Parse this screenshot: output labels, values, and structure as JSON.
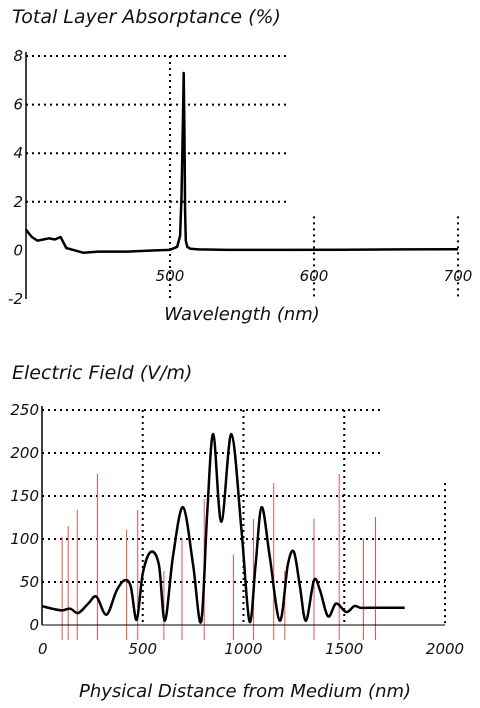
{
  "chart_data": [
    {
      "type": "line",
      "title": "Total Layer Absorptance (%)",
      "xlabel": "Wavelength (nm)",
      "ylabel": "",
      "xlim": [
        400,
        700
      ],
      "ylim": [
        -2,
        8
      ],
      "xticks": [
        "500",
        "600",
        "700"
      ],
      "yticks": [
        "-2",
        "0",
        "2",
        "4",
        "6",
        "8"
      ],
      "grid": "dotted",
      "series": [
        {
          "x": [
            400,
            404,
            408,
            412,
            416,
            420,
            424,
            428,
            434,
            440,
            450,
            470,
            490,
            500,
            505,
            507,
            508,
            509,
            509.5,
            510,
            510.5,
            511,
            512,
            514,
            520,
            540,
            580,
            620,
            660,
            700
          ],
          "values": [
            0.85,
            0.55,
            0.4,
            0.45,
            0.5,
            0.45,
            0.55,
            0.1,
            0.0,
            -0.1,
            -0.05,
            -0.05,
            0.0,
            0.02,
            0.15,
            0.6,
            2.2,
            5.5,
            7.3,
            5.0,
            1.6,
            0.4,
            0.15,
            0.07,
            0.04,
            0.02,
            0.02,
            0.03,
            0.04,
            0.05
          ]
        }
      ]
    },
    {
      "type": "line",
      "title": "Electric Field (V/m)",
      "xlabel": "Physical Distance from Medium (nm)",
      "ylabel": "",
      "xlim": [
        0,
        2000
      ],
      "ylim": [
        0,
        250
      ],
      "xticks": [
        "0",
        "500",
        "1000",
        "1500",
        "2000"
      ],
      "yticks": [
        "0",
        "50",
        "100",
        "150",
        "200",
        "250"
      ],
      "grid": "dotted",
      "series": [
        {
          "x": [
            0,
            50,
            100,
            140,
            180,
            230,
            270,
            320,
            370,
            410,
            440,
            470,
            500,
            540,
            580,
            610,
            650,
            700,
            750,
            790,
            820,
            850,
            890,
            940,
            990,
            1030,
            1060,
            1090,
            1130,
            1180,
            1220,
            1250,
            1280,
            1310,
            1350,
            1380,
            1420,
            1460,
            1510,
            1550,
            1580,
            1620,
            1700,
            1800
          ],
          "values": [
            22,
            19,
            17,
            19,
            14,
            25,
            33,
            12,
            40,
            52,
            45,
            6,
            60,
            85,
            70,
            5,
            80,
            137,
            70,
            4,
            130,
            222,
            120,
            222,
            110,
            4,
            70,
            137,
            80,
            5,
            70,
            85,
            45,
            5,
            52,
            40,
            10,
            25,
            15,
            22,
            20,
            20,
            20,
            20
          ]
        }
      ],
      "reference_lines_x": [
        100,
        130,
        175,
        275,
        420,
        475,
        605,
        695,
        805,
        950,
        1050,
        1150,
        1205,
        1350,
        1475,
        1595,
        1655
      ]
    }
  ]
}
